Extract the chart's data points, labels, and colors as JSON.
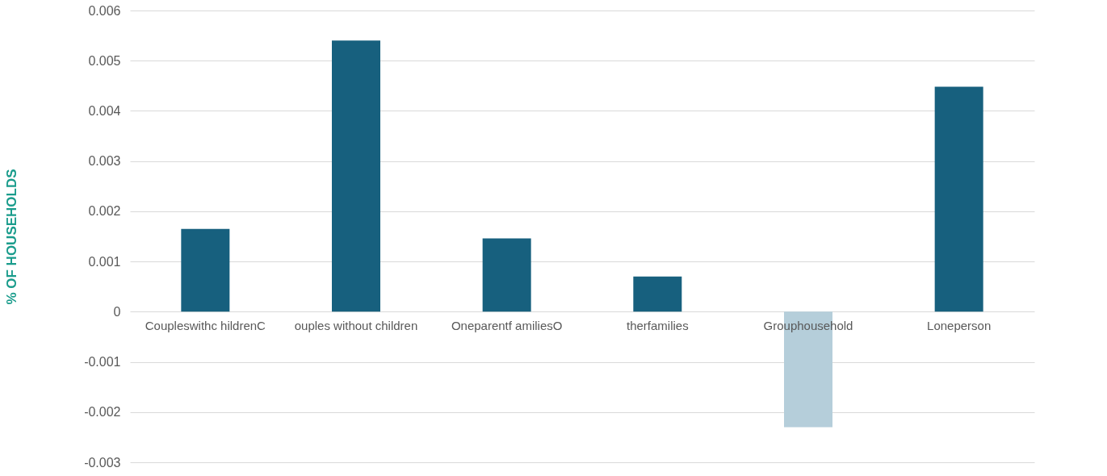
{
  "chart_data": {
    "type": "bar",
    "ylabel": "% OF HOUSEHOLDS",
    "categories": [
      "Coupleswithc hildrenC",
      "ouples without children",
      "Oneparentf amiliesO",
      "therfamilies",
      "Grouphousehold",
      "Loneperson"
    ],
    "values": [
      0.00165,
      0.0054,
      0.00146,
      0.0007,
      -0.0023,
      0.00448
    ],
    "colors": [
      "#17607e",
      "#17607e",
      "#17607e",
      "#17607e",
      "#b5ceda",
      "#17607e"
    ],
    "ylim": [
      -0.003,
      0.006
    ],
    "yticks": [
      -0.003,
      -0.002,
      -0.001,
      0,
      0.001,
      0.002,
      0.003,
      0.004,
      0.005,
      0.006
    ],
    "grid": "y"
  }
}
